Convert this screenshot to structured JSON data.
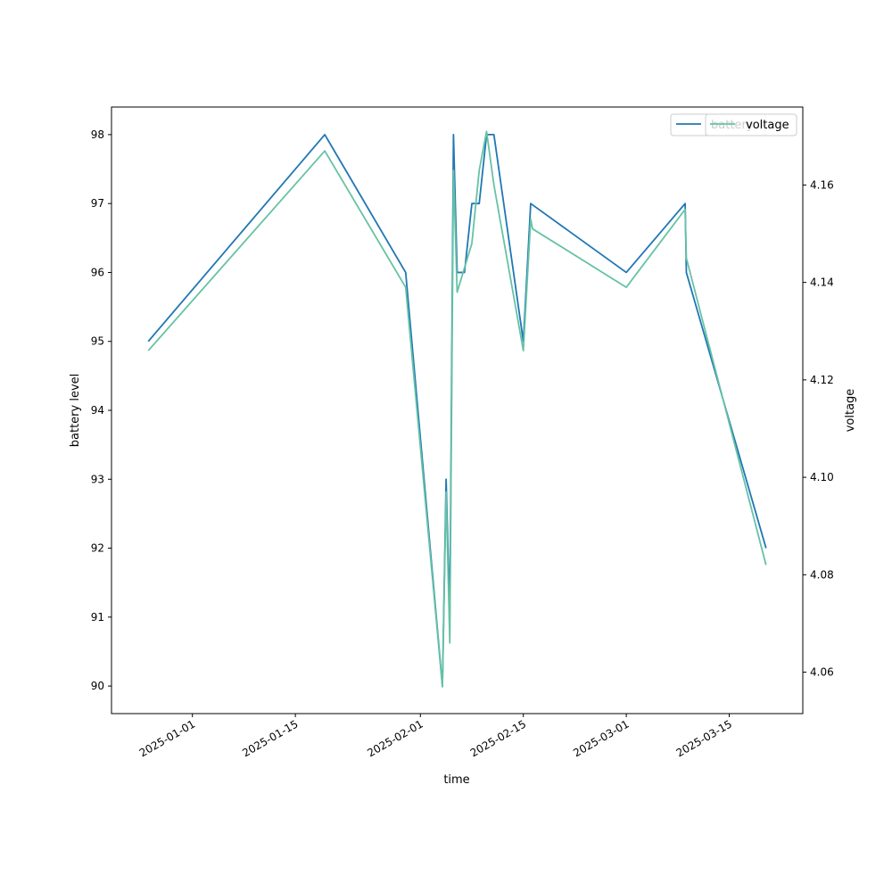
{
  "chart_data": {
    "type": "line",
    "xlabel": "time",
    "ylabel_left": "battery level",
    "ylabel_right": "voltage",
    "x_ticks": [
      "2025-01-01",
      "2025-01-15",
      "2025-02-01",
      "2025-02-15",
      "2025-03-01",
      "2025-03-15"
    ],
    "xlim": [
      "2024-12-21",
      "2025-03-25"
    ],
    "ylim_left": [
      89.6,
      98.4
    ],
    "ylim_right": [
      4.0515,
      4.176
    ],
    "y_ticks_left": [
      90,
      91,
      92,
      93,
      94,
      95,
      96,
      97,
      98
    ],
    "y_ticks_right": [
      4.06,
      4.08,
      4.1,
      4.12,
      4.14,
      4.16
    ],
    "grid": false,
    "legend_position": "top-right",
    "series": [
      {
        "name": "battery",
        "axis": "left",
        "color": "#1f77b4",
        "x": [
          "2024-12-26",
          "2025-01-19",
          "2025-01-30",
          "2025-02-04",
          "2025-02-04T12:00",
          "2025-02-05",
          "2025-02-05T12:00",
          "2025-02-06",
          "2025-02-07",
          "2025-02-08",
          "2025-02-09",
          "2025-02-10",
          "2025-02-11",
          "2025-02-15",
          "2025-02-16",
          "2025-03-01",
          "2025-03-09",
          "2025-03-09T04:00",
          "2025-03-20"
        ],
        "y": [
          95,
          98,
          96,
          90,
          93,
          91,
          98,
          96,
          96,
          97,
          97,
          98,
          98,
          95,
          97,
          96,
          97,
          96,
          92
        ]
      },
      {
        "name": "voltage",
        "axis": "right",
        "color": "#66c2a5",
        "x": [
          "2024-12-26",
          "2025-01-19",
          "2025-01-30",
          "2025-02-04",
          "2025-02-04T12:00",
          "2025-02-05",
          "2025-02-05T12:00",
          "2025-02-06",
          "2025-02-08",
          "2025-02-09",
          "2025-02-10",
          "2025-02-11",
          "2025-02-15",
          "2025-02-16",
          "2025-02-16T06:00",
          "2025-03-01",
          "2025-03-09",
          "2025-03-09T04:00",
          "2025-03-20"
        ],
        "y": [
          4.126,
          4.167,
          4.139,
          4.057,
          4.097,
          4.066,
          4.163,
          4.138,
          4.148,
          4.163,
          4.171,
          4.16,
          4.126,
          4.153,
          4.151,
          4.139,
          4.155,
          4.145,
          4.082
        ]
      }
    ]
  }
}
